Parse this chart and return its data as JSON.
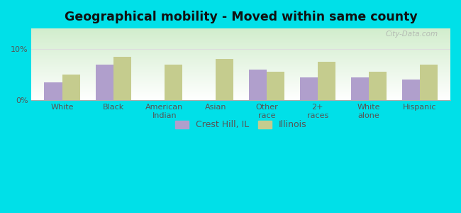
{
  "title": "Geographical mobility - Moved within same county",
  "categories": [
    "White",
    "Black",
    "American\nIndian",
    "Asian",
    "Other\nrace",
    "2+\nraces",
    "White\nalone",
    "Hispanic"
  ],
  "crest_hill_values": [
    3.5,
    7.0,
    0.0,
    0.0,
    6.0,
    4.5,
    4.5,
    4.0
  ],
  "illinois_values": [
    5.0,
    8.5,
    7.0,
    8.0,
    5.5,
    7.5,
    5.5,
    7.0
  ],
  "crest_hill_color": "#b09fcc",
  "illinois_color": "#c5cc8e",
  "background_outer": "#00e0e8",
  "grid_color": "#dddddd",
  "ylim": [
    0,
    14
  ],
  "yticks": [
    0,
    10
  ],
  "ytick_labels": [
    "0%",
    "10%"
  ],
  "bar_width": 0.35,
  "title_fontsize": 12.5,
  "tick_fontsize": 8.0,
  "legend_label_1": "Crest Hill, IL",
  "legend_label_2": "Illinois",
  "watermark": "City-Data.com"
}
